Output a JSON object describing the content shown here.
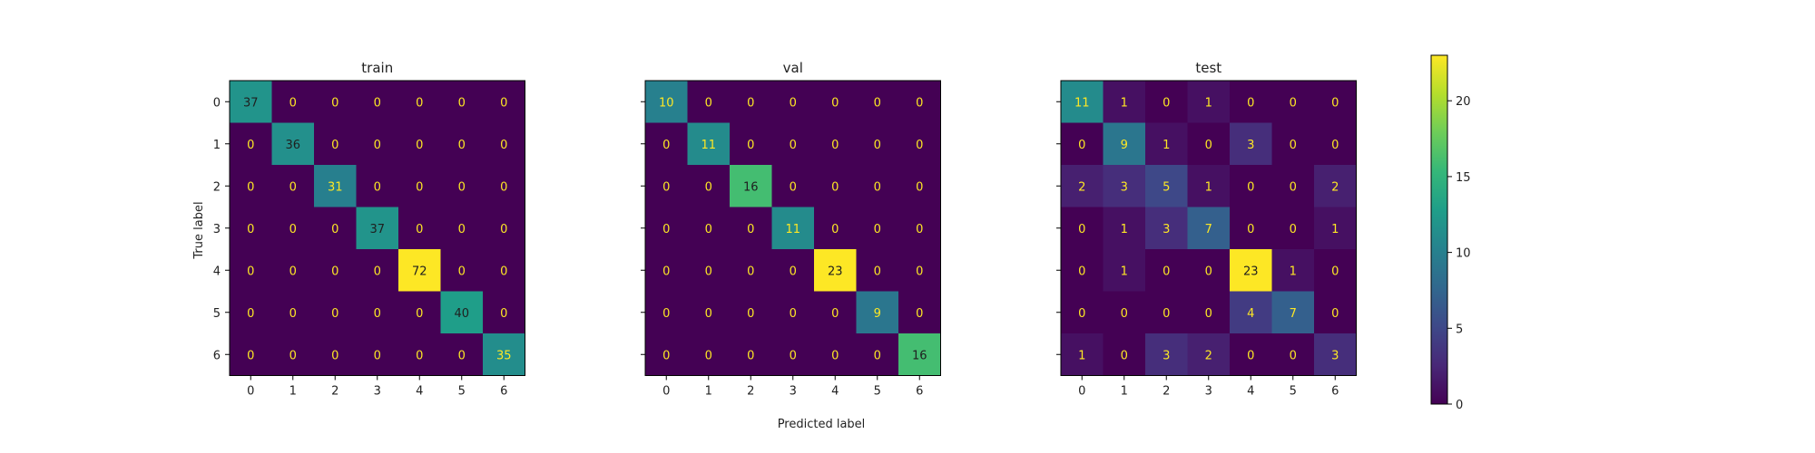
{
  "chart_data": {
    "type": "heatmap",
    "figure": {
      "xlabel": "Predicted label",
      "ylabel": "True label"
    },
    "labels": [
      "0",
      "1",
      "2",
      "3",
      "4",
      "5",
      "6"
    ],
    "panels": [
      {
        "title": "train",
        "vmax": 72,
        "matrix": [
          [
            37,
            0,
            0,
            0,
            0,
            0,
            0
          ],
          [
            0,
            36,
            0,
            0,
            0,
            0,
            0
          ],
          [
            0,
            0,
            31,
            0,
            0,
            0,
            0
          ],
          [
            0,
            0,
            0,
            37,
            0,
            0,
            0
          ],
          [
            0,
            0,
            0,
            0,
            72,
            0,
            0
          ],
          [
            0,
            0,
            0,
            0,
            0,
            40,
            0
          ],
          [
            0,
            0,
            0,
            0,
            0,
            0,
            35
          ]
        ]
      },
      {
        "title": "val",
        "vmax": 23,
        "matrix": [
          [
            10,
            0,
            0,
            0,
            0,
            0,
            0
          ],
          [
            0,
            11,
            0,
            0,
            0,
            0,
            0
          ],
          [
            0,
            0,
            16,
            0,
            0,
            0,
            0
          ],
          [
            0,
            0,
            0,
            11,
            0,
            0,
            0
          ],
          [
            0,
            0,
            0,
            0,
            23,
            0,
            0
          ],
          [
            0,
            0,
            0,
            0,
            0,
            9,
            0
          ],
          [
            0,
            0,
            0,
            0,
            0,
            0,
            16
          ]
        ]
      },
      {
        "title": "test",
        "vmax": 23,
        "matrix": [
          [
            11,
            1,
            0,
            1,
            0,
            0,
            0
          ],
          [
            0,
            9,
            1,
            0,
            3,
            0,
            0
          ],
          [
            2,
            3,
            5,
            1,
            0,
            0,
            2
          ],
          [
            0,
            1,
            3,
            7,
            0,
            0,
            1
          ],
          [
            0,
            1,
            0,
            0,
            23,
            1,
            0
          ],
          [
            0,
            0,
            0,
            0,
            4,
            7,
            0
          ],
          [
            1,
            0,
            3,
            2,
            0,
            0,
            3
          ]
        ]
      }
    ],
    "colorbar": {
      "range": [
        0,
        23
      ],
      "ticks": [
        "0",
        "5",
        "10",
        "15",
        "20"
      ]
    },
    "colormap": "viridis",
    "colors": {
      "text_on_dark": "#fde725",
      "text_on_light": "#1f1f1f"
    }
  }
}
